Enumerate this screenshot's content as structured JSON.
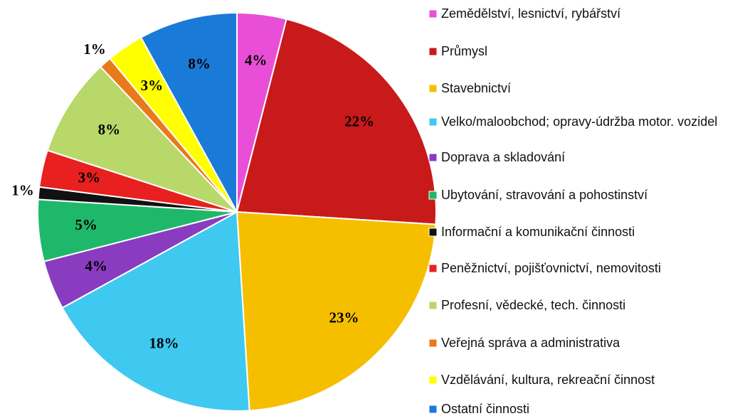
{
  "chart_data": {
    "type": "pie",
    "categories": [
      "Zemědělství, lesnictví, rybářství",
      "Průmysl",
      "Stavebnictví",
      "Velko/maloobchod; opravy-údržba motor. vozidel",
      "Doprava a skladování",
      "Ubytování, stravování a pohostinství",
      "Informační a komunikační činnosti",
      "Peněžnictví, pojišťovnictví, nemovitosti",
      "Profesní, vědecké, tech. činnosti",
      "Veřejná správa a administrativa",
      "Vzdělávání, kultura, rekreační činnost",
      "Ostatní činnosti"
    ],
    "values": [
      4,
      22,
      23,
      18,
      4,
      5,
      1,
      3,
      8,
      1,
      3,
      8
    ],
    "value_labels": [
      "4%",
      "22%",
      "23%",
      "18%",
      "4%",
      "5%",
      "1%",
      "3%",
      "8%",
      "1%",
      "3%",
      "8%"
    ],
    "colors": [
      "#e84fd6",
      "#c81a1a",
      "#f5bf00",
      "#3fc8f0",
      "#8a3cc0",
      "#1fb86a",
      "#111111",
      "#e82020",
      "#b8d86a",
      "#e87a1a",
      "#ffff00",
      "#1a7ad8"
    ],
    "legend": "right"
  }
}
